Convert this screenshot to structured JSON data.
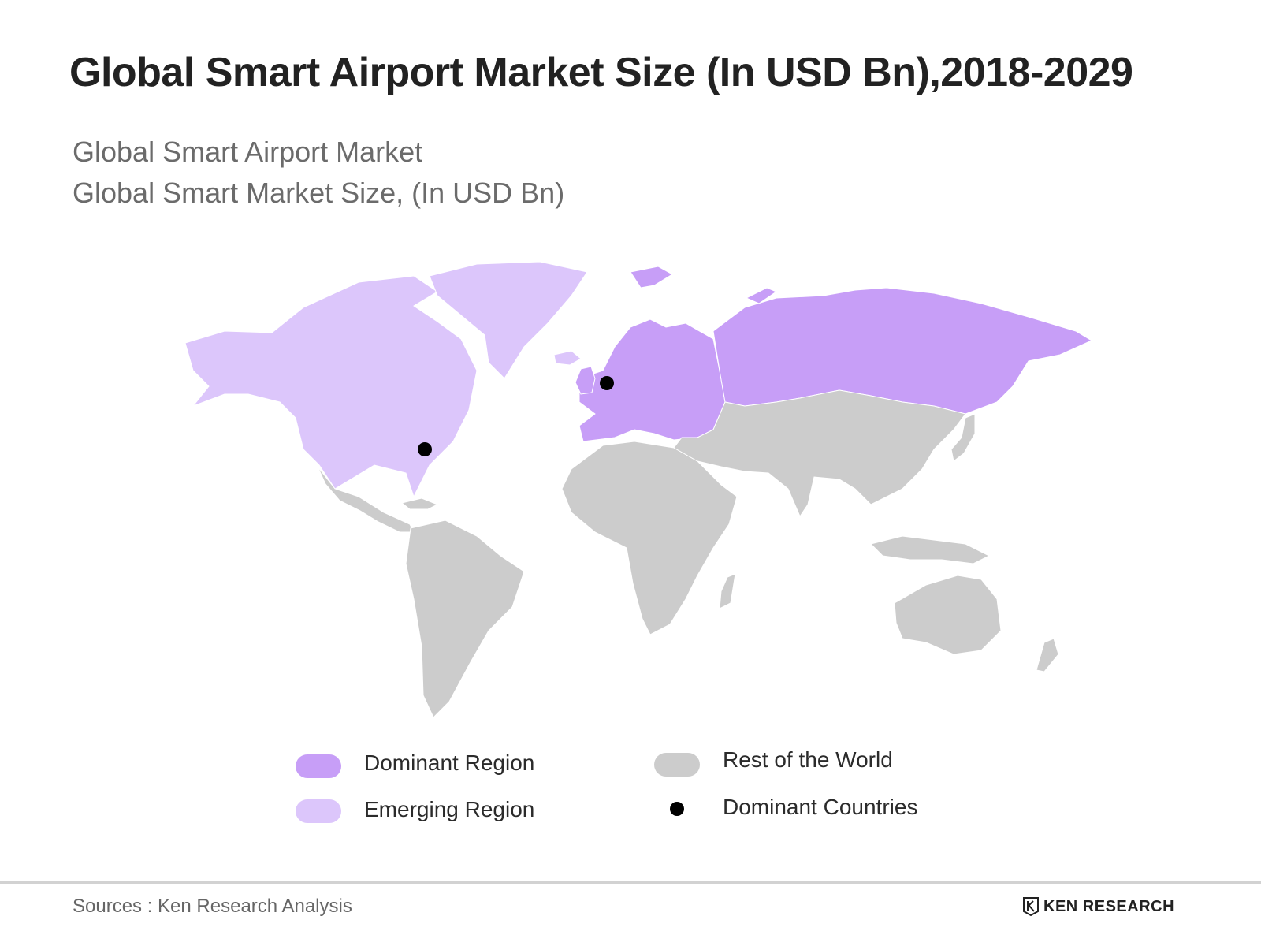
{
  "title": "Global Smart Airport Market Size (In USD Bn),2018-2029",
  "subtitle_line1": "Global Smart Airport Market",
  "subtitle_line2": "Global Smart Market Size, (In USD Bn)",
  "legend": {
    "dominant_region": "Dominant Region",
    "emerging_region": "Emerging Region",
    "rest_of_world": "Rest of the World",
    "dominant_countries": "Dominant Countries"
  },
  "colors": {
    "dominant": "#c79ef7",
    "emerging": "#dcc6fb",
    "rest": "#cccccc",
    "dot": "#000000"
  },
  "source": "Sources : Ken Research Analysis",
  "logo_text": "KEN RESEARCH"
}
